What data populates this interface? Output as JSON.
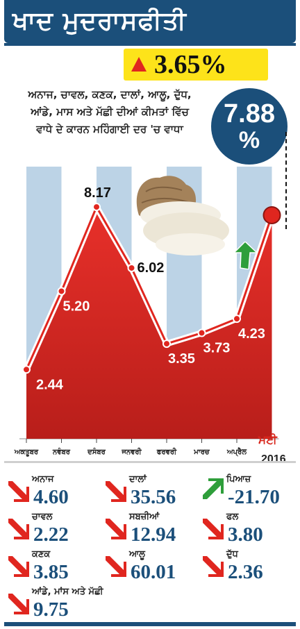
{
  "title": "ਖਾਦ ਮੁਦਰਾਸਫੀਤੀ",
  "headline_change": "3.65%",
  "description_lines": [
    "ਅਨਾਜ, ਚਾਵਲ, ਕਣਕ, ਦਾਲਾਂ, ਆਲੂ, ਦੁੱਧ,",
    "ਆਂਡੇ, ਮਾਸ ਅਤੇ ਮੱਛੀ ਦੀਆਂ ਕੀਮਤਾਂ ਵਿੱਚ",
    "ਵਾਧੇ ਦੇ ਕਾਰਨ ਮਹਿੰਗਾਈ ਦਰ 'ਚ ਵਾਧਾ"
  ],
  "badge": {
    "value": "7.88",
    "unit": "%"
  },
  "colors": {
    "navy": "#1b4f7a",
    "red": "#e0261f",
    "yellow": "#fde31a",
    "green": "#2e9e3a"
  },
  "chart_data": {
    "type": "area",
    "x": [
      "ਅਕਤੂਬਰ",
      "ਨਵੰਬਰ",
      "ਦਸੰਬਰ",
      "ਜਨਵਰੀ",
      "ਫਰਵਰੀ",
      "ਮਾਰਚ",
      "ਅਪ੍ਰੈਲ",
      "ਮਈ"
    ],
    "values": [
      2.44,
      5.2,
      8.17,
      6.02,
      3.35,
      3.73,
      4.23,
      7.88
    ],
    "labels": [
      "2.44",
      "5.20",
      "8.17",
      "6.02",
      "3.35",
      "3.73",
      "4.23",
      ""
    ],
    "year": "2016",
    "ylim": [
      0,
      9.2
    ]
  },
  "commodities": [
    {
      "name": "ਅਨਾਜ",
      "value": "4.60",
      "direction": "down"
    },
    {
      "name": "ਦਾਲਾਂ",
      "value": "35.56",
      "direction": "down"
    },
    {
      "name": "ਪਿਆਜ਼",
      "value": "-21.70",
      "direction": "up"
    },
    {
      "name": "ਚਾਵਲ",
      "value": "2.22",
      "direction": "down"
    },
    {
      "name": "ਸਬਜ਼ੀਆਂ",
      "value": "12.94",
      "direction": "down"
    },
    {
      "name": "ਫਲ",
      "value": "3.80",
      "direction": "down"
    },
    {
      "name": "ਕਣਕ",
      "value": "3.85",
      "direction": "down"
    },
    {
      "name": "ਆਲੂ",
      "value": "60.01",
      "direction": "down"
    },
    {
      "name": "ਦੁੱਧ",
      "value": "2.36",
      "direction": "down"
    },
    {
      "name": "ਆਂਡੇ, ਮਾਂਸ ਅਤੇ ਮੱਛੀ",
      "value": "9.75",
      "direction": "down"
    }
  ]
}
